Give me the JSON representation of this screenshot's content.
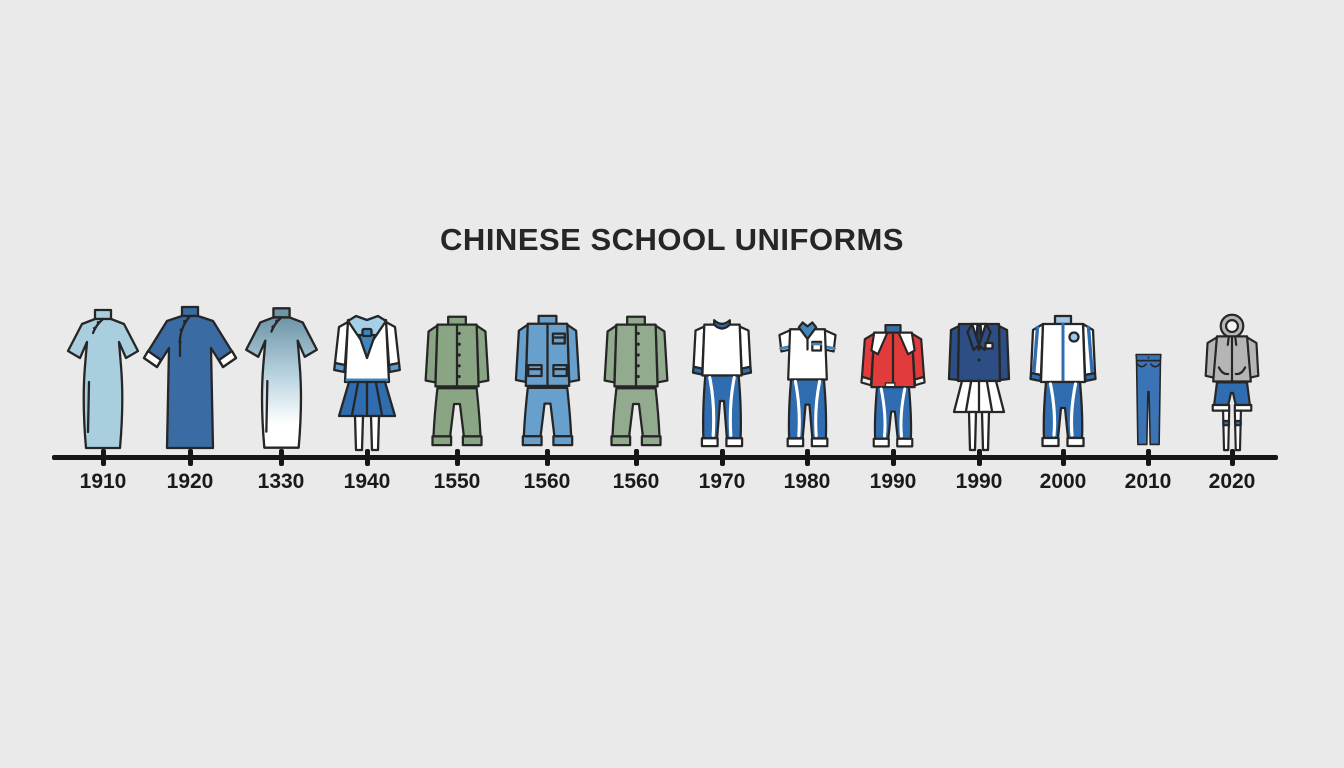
{
  "title": "CHINESE SCHOOL UNIFORMS",
  "background_color": "#eaeaea",
  "axis": {
    "line_color": "#161616",
    "tick_count": 14
  },
  "timeline": {
    "items": [
      {
        "year": "1910",
        "garment": "qipao",
        "description": "light blue short-sleeve qipao dress with mandarin collar and side slit",
        "colors": {
          "dress": "#a9cfdf"
        }
      },
      {
        "year": "1920",
        "garment": "changshan-robe",
        "description": "blue long robe with wide flared sleeves and white cuffs",
        "colors": {
          "robe": "#3a6ca3",
          "cuff": "#ffffff"
        }
      },
      {
        "year": "1330",
        "garment": "qipao-gradient",
        "description": "grey-blue qipao fading to white at the hem",
        "colors": {
          "top": "#6f95a8",
          "mid": "#b9d4e0",
          "hem": "#ffffff"
        }
      },
      {
        "year": "1940",
        "garment": "sailor-uniform",
        "description": "white sailor blouse with blue neckerchief, blue pleated skirt and white stockings",
        "colors": {
          "blouse": "#ffffff",
          "collar": "#a6d0e8",
          "tie": "#3f86c0",
          "skirt": "#2f6cb0",
          "cuff": "#5b9bd0"
        }
      },
      {
        "year": "1550",
        "garment": "mao-suit-green",
        "description": "sage green Mao jacket and trousers",
        "colors": {
          "suit": "#8aa584"
        }
      },
      {
        "year": "1560",
        "garment": "mao-suit-blue",
        "description": "blue Mao jacket with patch pockets and trousers",
        "colors": {
          "suit": "#68a0cd"
        }
      },
      {
        "year": "1560",
        "garment": "mao-suit-green-2",
        "description": "green Mao jacket and trousers",
        "colors": {
          "suit": "#92aa8e"
        }
      },
      {
        "year": "1970",
        "garment": "tracksuit-white-top",
        "description": "white sweatshirt with blue trim and blue track pants with white stripes",
        "colors": {
          "top": "#ffffff",
          "trim": "#2f6cb0",
          "pants": "#2f6cb0"
        }
      },
      {
        "year": "1980",
        "garment": "polo-tracksuit",
        "description": "white short-sleeve polo with blue collar and blue track pants",
        "colors": {
          "shirt": "#ffffff",
          "collar": "#3f86c0",
          "pants": "#2f6cb0"
        }
      },
      {
        "year": "1990",
        "garment": "red-track-jacket",
        "description": "red track jacket with white shoulder panels and blue track pants",
        "colors": {
          "jacket": "#e23b3b",
          "panel": "#ffffff",
          "collar": "#3a6ca3",
          "pants": "#2f6cb0"
        }
      },
      {
        "year": "1990",
        "garment": "blazer-and-skirt",
        "description": "navy blazer with shirt and tie, white pleated skirt and knee socks",
        "colors": {
          "blazer": "#2d4e84",
          "shirt": "#ffffff",
          "tie": "#1f3a63",
          "skirt": "#ffffff"
        }
      },
      {
        "year": "2000",
        "garment": "white-track-jacket",
        "description": "white track jacket with blue trim and badge, blue track pants",
        "colors": {
          "jacket": "#ffffff",
          "trim": "#2f6cb0",
          "collar": "#9fc6e8",
          "pants": "#2f6cb0"
        }
      },
      {
        "year": "2010",
        "garment": "jeans",
        "description": "blue jeans",
        "colors": {
          "jeans": "#3a74b5"
        }
      },
      {
        "year": "2020",
        "garment": "hoodie-and-shorts",
        "description": "grey hoodie with blue shorts and white knee socks",
        "colors": {
          "hoodie": "#b5b5b5",
          "shorts": "#2f6cb0",
          "socks": "#fafafa"
        }
      }
    ]
  }
}
